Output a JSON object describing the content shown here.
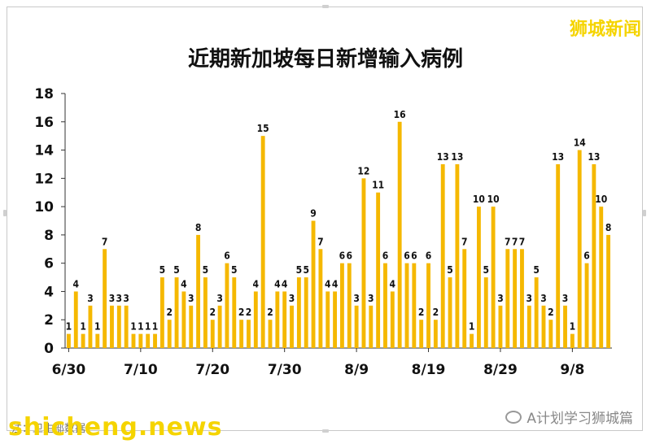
{
  "brand_top": "狮城新闻",
  "footer": {
    "source": "注：卫生部数据",
    "site": "shicheng.news",
    "wechat_account": "A计划学习狮城篇",
    "wechat_icon": "wechat-icon"
  },
  "colors": {
    "bar": "#f5b800",
    "axis": "#333333",
    "brand": "#f5d400"
  },
  "chart_data": {
    "type": "bar",
    "title": "近期新加坡每日新增输入病例",
    "xlabel": "",
    "ylabel": "",
    "ylim": [
      0,
      18
    ],
    "yticks": [
      0,
      2,
      4,
      6,
      8,
      10,
      12,
      14,
      16,
      18
    ],
    "grid": false,
    "x_tick_labels": [
      {
        "label": "6/30",
        "index": 0
      },
      {
        "label": "7/10",
        "index": 10
      },
      {
        "label": "7/20",
        "index": 20
      },
      {
        "label": "7/30",
        "index": 30
      },
      {
        "label": "8/9",
        "index": 40
      },
      {
        "label": "8/19",
        "index": 50
      },
      {
        "label": "8/29",
        "index": 60
      },
      {
        "label": "9/8",
        "index": 70
      }
    ],
    "values": [
      1,
      4,
      1,
      3,
      1,
      7,
      3,
      3,
      3,
      1,
      1,
      1,
      1,
      5,
      2,
      5,
      4,
      3,
      8,
      5,
      2,
      3,
      6,
      5,
      2,
      2,
      4,
      15,
      2,
      4,
      4,
      3,
      5,
      5,
      9,
      7,
      4,
      4,
      6,
      6,
      3,
      12,
      3,
      11,
      6,
      4,
      16,
      6,
      6,
      2,
      6,
      2,
      13,
      5,
      13,
      7,
      1,
      10,
      5,
      10,
      3,
      7,
      7,
      7,
      3,
      5,
      3,
      2,
      13,
      3,
      1,
      14,
      6,
      13,
      10,
      8
    ]
  }
}
